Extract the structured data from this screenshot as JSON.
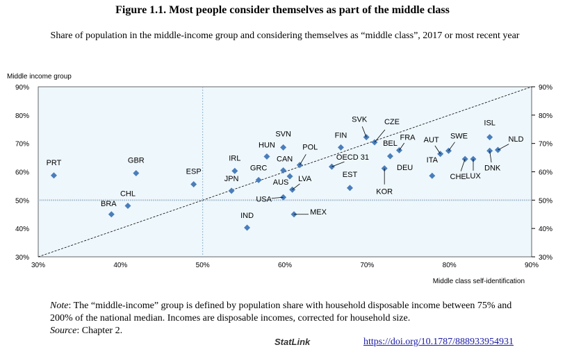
{
  "chart_data": {
    "type": "scatter",
    "title": "Figure 1.1. Most people consider themselves as part of the middle class",
    "subtitle": "Share of population in the middle-income group and considering themselves as “middle class”, 2017 or most recent year",
    "xlabel": "Middle class self-identification",
    "ylabel": "Middle income group",
    "xlim": [
      30,
      90
    ],
    "ylim": [
      30,
      90
    ],
    "xticks": [
      "30%",
      "40%",
      "50%",
      "60%",
      "70%",
      "80%",
      "90%"
    ],
    "yticks": [
      "30%",
      "40%",
      "50%",
      "60%",
      "70%",
      "80%",
      "90%"
    ],
    "reference_lines": {
      "x": 50,
      "y": 50,
      "diagonal": "45-degree"
    },
    "color": "#4a7ebb",
    "points": [
      {
        "label": "PRT",
        "x": 31.9,
        "y": 58.7
      },
      {
        "label": "GBR",
        "x": 41.9,
        "y": 59.5
      },
      {
        "label": "ESP",
        "x": 48.9,
        "y": 55.6
      },
      {
        "label": "BRA",
        "x": 38.9,
        "y": 45.0
      },
      {
        "label": "CHL",
        "x": 40.9,
        "y": 48.0
      },
      {
        "label": "IRL",
        "x": 53.9,
        "y": 60.3
      },
      {
        "label": "JPN",
        "x": 53.5,
        "y": 53.3
      },
      {
        "label": "GRC",
        "x": 56.8,
        "y": 57.1
      },
      {
        "label": "HUN",
        "x": 57.8,
        "y": 65.4
      },
      {
        "label": "SVN",
        "x": 59.8,
        "y": 68.6
      },
      {
        "label": "CAN",
        "x": 59.8,
        "y": 60.5
      },
      {
        "label": "AUS",
        "x": 60.6,
        "y": 58.4
      },
      {
        "label": "USA",
        "x": 59.8,
        "y": 51.0
      },
      {
        "label": "LVA",
        "x": 60.9,
        "y": 53.7
      },
      {
        "label": "POL",
        "x": 61.8,
        "y": 62.4
      },
      {
        "label": "IND",
        "x": 55.4,
        "y": 40.3
      },
      {
        "label": "MEX",
        "x": 61.1,
        "y": 45.0
      },
      {
        "label": "OECD 31",
        "x": 65.7,
        "y": 61.8
      },
      {
        "label": "FIN",
        "x": 66.8,
        "y": 68.6
      },
      {
        "label": "EST",
        "x": 67.9,
        "y": 54.3
      },
      {
        "label": "SVK",
        "x": 69.9,
        "y": 72.2
      },
      {
        "label": "CZE",
        "x": 70.9,
        "y": 70.4
      },
      {
        "label": "BEL",
        "x": 72.8,
        "y": 65.5
      },
      {
        "label": "DEU",
        "x": 72.9,
        "y": 65.3
      },
      {
        "label": "FRA",
        "x": 73.9,
        "y": 67.6
      },
      {
        "label": "KOR",
        "x": 72.1,
        "y": 61.2
      },
      {
        "label": "ITA",
        "x": 77.9,
        "y": 58.6
      },
      {
        "label": "AUT",
        "x": 78.9,
        "y": 66.3
      },
      {
        "label": "SWE",
        "x": 79.9,
        "y": 67.4
      },
      {
        "label": "CHE",
        "x": 81.9,
        "y": 64.5
      },
      {
        "label": "LUX",
        "x": 82.9,
        "y": 64.5
      },
      {
        "label": "ISL",
        "x": 84.9,
        "y": 72.2
      },
      {
        "label": "DNK",
        "x": 84.9,
        "y": 67.4
      },
      {
        "label": "NLD",
        "x": 85.9,
        "y": 67.7
      }
    ]
  },
  "footer": {
    "note_label": "Note",
    "note_text": ": The “middle-income” group is defined by population share with household disposable income between 75% and 200% of the national median. Incomes are disposable incomes, corrected for household size.",
    "source_label": "Source",
    "source_text": ": Chapter 2.",
    "statlink": "StatLink",
    "doi": "https://doi.org/10.1787/888933954931"
  }
}
